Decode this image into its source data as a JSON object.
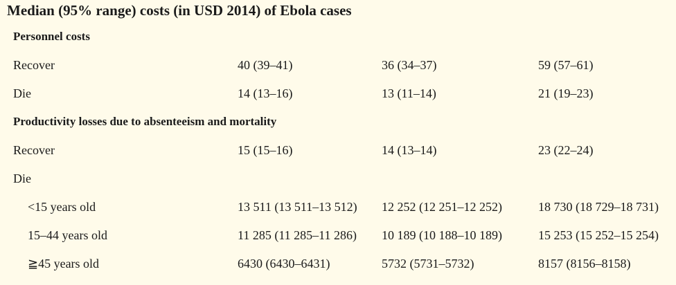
{
  "title": "Median (95% range) costs (in USD 2014) of Ebola cases",
  "sections": [
    {
      "heading": "Personnel costs",
      "rows": [
        {
          "label": "Recover",
          "values": [
            "40 (39–41)",
            "36 (34–37)",
            "59 (57–61)"
          ]
        },
        {
          "label": "Die",
          "values": [
            "14 (13–16)",
            "13 (11–14)",
            "21 (19–23)"
          ]
        }
      ]
    },
    {
      "heading": "Productivity losses due to absenteeism and mortality",
      "rows": [
        {
          "label": "Recover",
          "values": [
            "15 (15–16)",
            "14 (13–14)",
            "23 (22–24)"
          ]
        },
        {
          "label": "Die",
          "values": [
            "",
            "",
            ""
          ]
        },
        {
          "label": "<15 years old",
          "values": [
            "13 511 (13 511–13 512)",
            "12 252 (12 251–12 252)",
            "18 730 (18 729–18 731)"
          ]
        },
        {
          "label": "15–44 years old",
          "values": [
            "11 285 (11 285–11 286)",
            "10 189 (10 188–10 189)",
            "15 253 (15 252–15 254)"
          ]
        },
        {
          "label": "≧45 years old",
          "values": [
            "6430 (6430–6431)",
            "5732 (5731–5732)",
            "8157 (8156–8158)"
          ]
        }
      ]
    }
  ]
}
